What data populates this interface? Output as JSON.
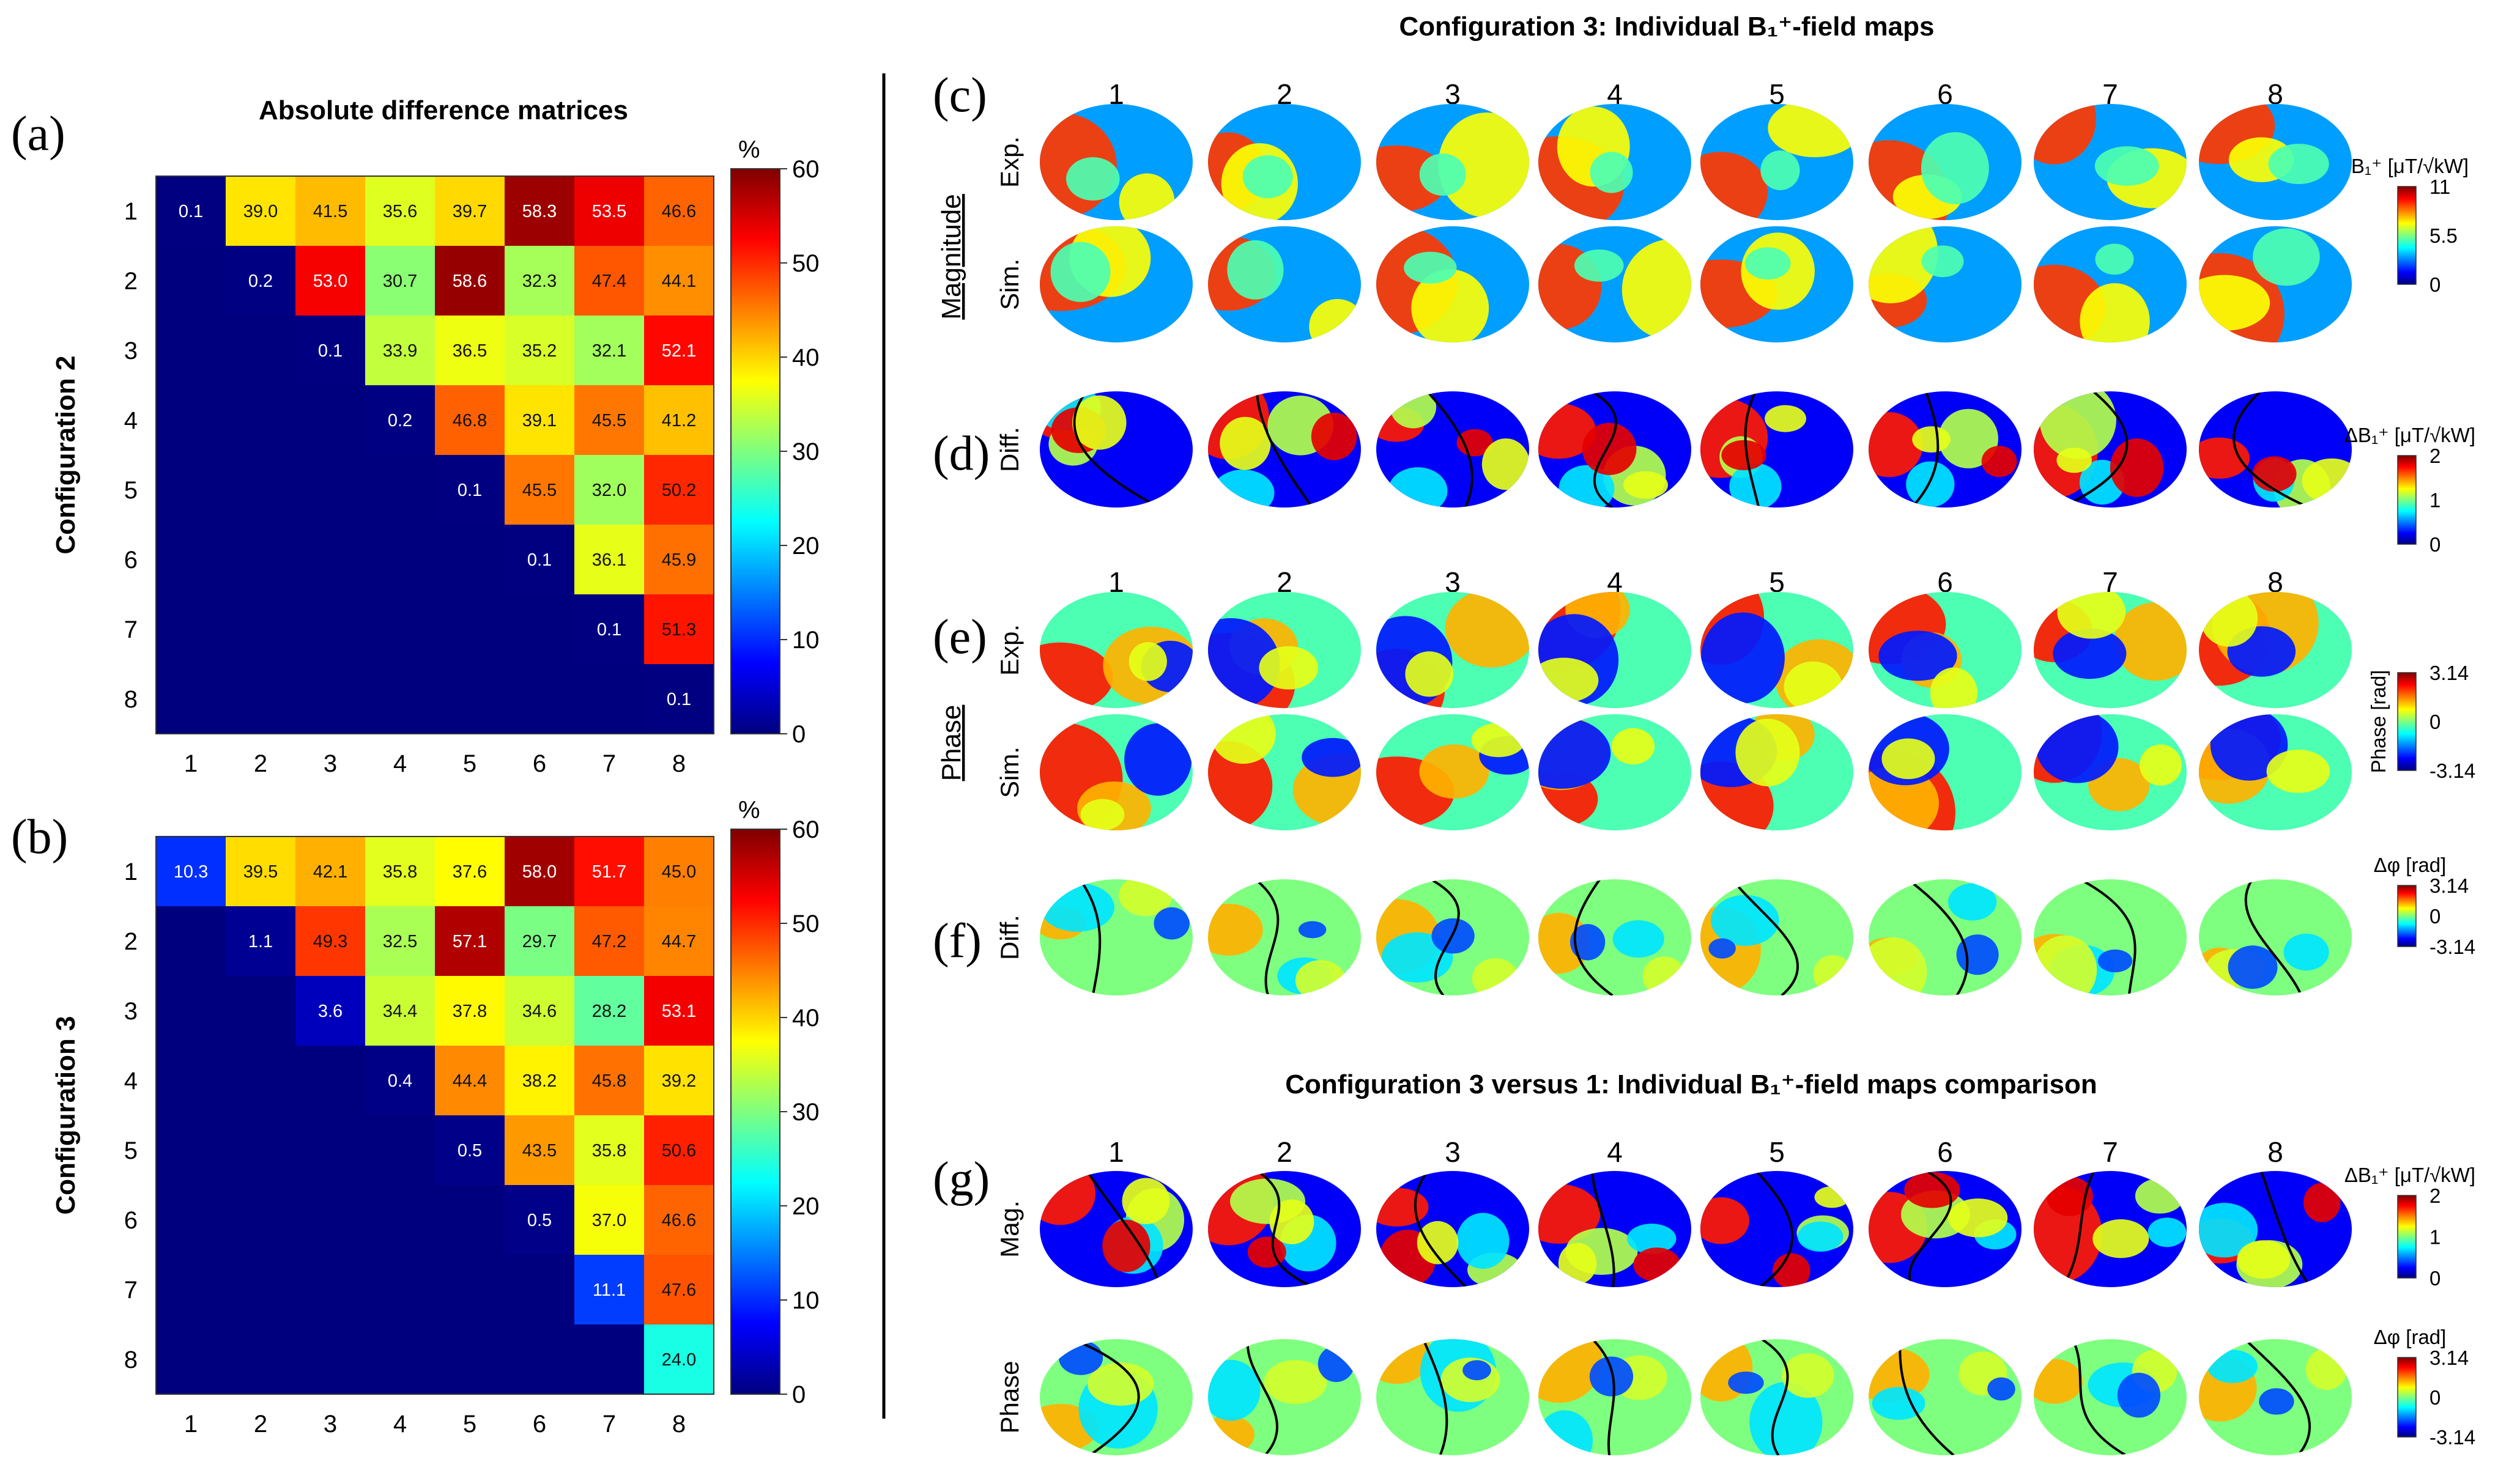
{
  "colors": {
    "jet": [
      "#00007f",
      "#0000ff",
      "#007fff",
      "#00ffff",
      "#7fff7f",
      "#ffff00",
      "#ff7f00",
      "#ff0000",
      "#7f0000"
    ],
    "divider": "#000000",
    "contour": "#000000"
  },
  "panel_labels": {
    "a": "(a)",
    "b": "(b)",
    "c": "(c)",
    "d": "(d)",
    "e": "(e)",
    "f": "(f)",
    "g": "(g)"
  },
  "matrices": {
    "title": "Absolute difference matrices",
    "colorbar_unit": "%",
    "colorbar_ticks": [
      "0",
      "10",
      "20",
      "30",
      "40",
      "50",
      "60"
    ],
    "axis_ticks": [
      "1",
      "2",
      "3",
      "4",
      "5",
      "6",
      "7",
      "8"
    ]
  },
  "chart_data": [
    {
      "type": "heatmap",
      "id": "config2",
      "ylabel": "Configuration 2",
      "zlim": [
        0,
        60
      ],
      "rows": [
        [
          "0.1",
          "39.0",
          "41.5",
          "35.6",
          "39.7",
          "58.3",
          "53.5",
          "46.6"
        ],
        [
          "",
          "0.2",
          "53.0",
          "30.7",
          "58.6",
          "32.3",
          "47.4",
          "44.1"
        ],
        [
          "",
          "",
          "0.1",
          "33.9",
          "36.5",
          "35.2",
          "32.1",
          "52.1"
        ],
        [
          "",
          "",
          "",
          "0.2",
          "46.8",
          "39.1",
          "45.5",
          "41.2"
        ],
        [
          "",
          "",
          "",
          "",
          "0.1",
          "45.5",
          "32.0",
          "50.2"
        ],
        [
          "",
          "",
          "",
          "",
          "",
          "0.1",
          "36.1",
          "45.9"
        ],
        [
          "",
          "",
          "",
          "",
          "",
          "",
          "0.1",
          "51.3"
        ],
        [
          "",
          "",
          "",
          "",
          "",
          "",
          "",
          "0.1"
        ]
      ]
    },
    {
      "type": "heatmap",
      "id": "config3",
      "ylabel": "Configuration 3",
      "zlim": [
        0,
        60
      ],
      "rows": [
        [
          "10.3",
          "39.5",
          "42.1",
          "35.8",
          "37.6",
          "58.0",
          "51.7",
          "45.0"
        ],
        [
          "",
          "1.1",
          "49.3",
          "32.5",
          "57.1",
          "29.7",
          "47.2",
          "44.7"
        ],
        [
          "",
          "",
          "3.6",
          "34.4",
          "37.8",
          "34.6",
          "28.2",
          "53.1"
        ],
        [
          "",
          "",
          "",
          "0.4",
          "44.4",
          "38.2",
          "45.8",
          "39.2"
        ],
        [
          "",
          "",
          "",
          "",
          "0.5",
          "43.5",
          "35.8",
          "50.6"
        ],
        [
          "",
          "",
          "",
          "",
          "",
          "0.5",
          "37.0",
          "46.6"
        ],
        [
          "",
          "",
          "",
          "",
          "",
          "",
          "11.1",
          "47.6"
        ],
        [
          "",
          "",
          "",
          "",
          "",
          "",
          "",
          "24.0"
        ]
      ]
    }
  ],
  "maps": {
    "top_title": "Configuration 3: Individual B₁⁺-field maps",
    "bottom_title": "Configuration 3 versus 1: Individual B₁⁺-field maps comparison",
    "channels": [
      "1",
      "2",
      "3",
      "4",
      "5",
      "6",
      "7",
      "8"
    ],
    "magnitude_label": "Magnitude",
    "phase_label": "Phase",
    "row_labels": {
      "exp": "Exp.",
      "sim": "Sim.",
      "diff": "Diff.",
      "mag": "Mag.",
      "phase": "Phase"
    },
    "colorbars": {
      "mag": {
        "title": "B₁⁺ [μT/√kW]",
        "ticks": [
          "11",
          "5.5",
          "0"
        ]
      },
      "dmag": {
        "title": "ΔB₁⁺ [μT/√kW]",
        "ticks": [
          "2",
          "1",
          "0"
        ]
      },
      "phase": {
        "title": "Phase [rad]",
        "ticks": [
          "3.14",
          "0",
          "-3.14"
        ]
      },
      "dphase": {
        "title": "Δφ [rad]",
        "ticks": [
          "3.14",
          "0",
          "-3.14"
        ]
      },
      "dmag2": {
        "title": "ΔB₁⁺ [μT/√kW]",
        "ticks": [
          "2",
          "1",
          "0"
        ]
      },
      "dphase2": {
        "title": "Δφ [rad]",
        "ticks": [
          "3.14",
          "0",
          "-3.14"
        ]
      }
    }
  }
}
